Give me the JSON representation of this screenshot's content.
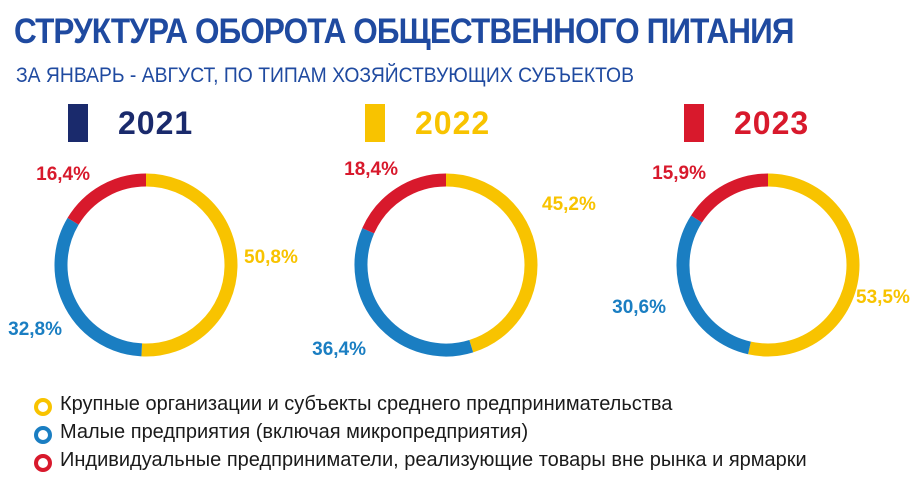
{
  "title": "СТРУКТУРА ОБОРОТА ОБЩЕСТВЕННОГО ПИТАНИЯ",
  "subtitle": "ЗА ЯНВАРЬ - АВГУСТ, ПО ТИПАМ ХОЗЯЙСТВУЮЩИХ СУБЪЕКТОВ",
  "chart_data": {
    "type": "pie",
    "donut": true,
    "categories": [
      "Крупные организации и субъекты среднего предпринимательства",
      "Малые предприятия (включая микропредприятия)",
      "Индивидуальные предприниматели, реализующие товары вне рынка и ярмарки"
    ],
    "category_colors": [
      "#f8c300",
      "#1a7ec2",
      "#d8192c"
    ],
    "series": [
      {
        "name": "2021",
        "color": "#1a2a6c",
        "values": [
          50.8,
          32.8,
          16.4
        ],
        "labels": [
          "50,8%",
          "32,8%",
          "16,4%"
        ]
      },
      {
        "name": "2022",
        "color": "#f8c300",
        "values": [
          45.2,
          36.4,
          18.4
        ],
        "labels": [
          "45,2%",
          "36,4%",
          "18,4%"
        ]
      },
      {
        "name": "2023",
        "color": "#d8192c",
        "values": [
          53.5,
          30.6,
          15.9
        ],
        "labels": [
          "53,5%",
          "30,6%",
          "15,9%"
        ]
      }
    ],
    "legend_position": "bottom-left"
  }
}
